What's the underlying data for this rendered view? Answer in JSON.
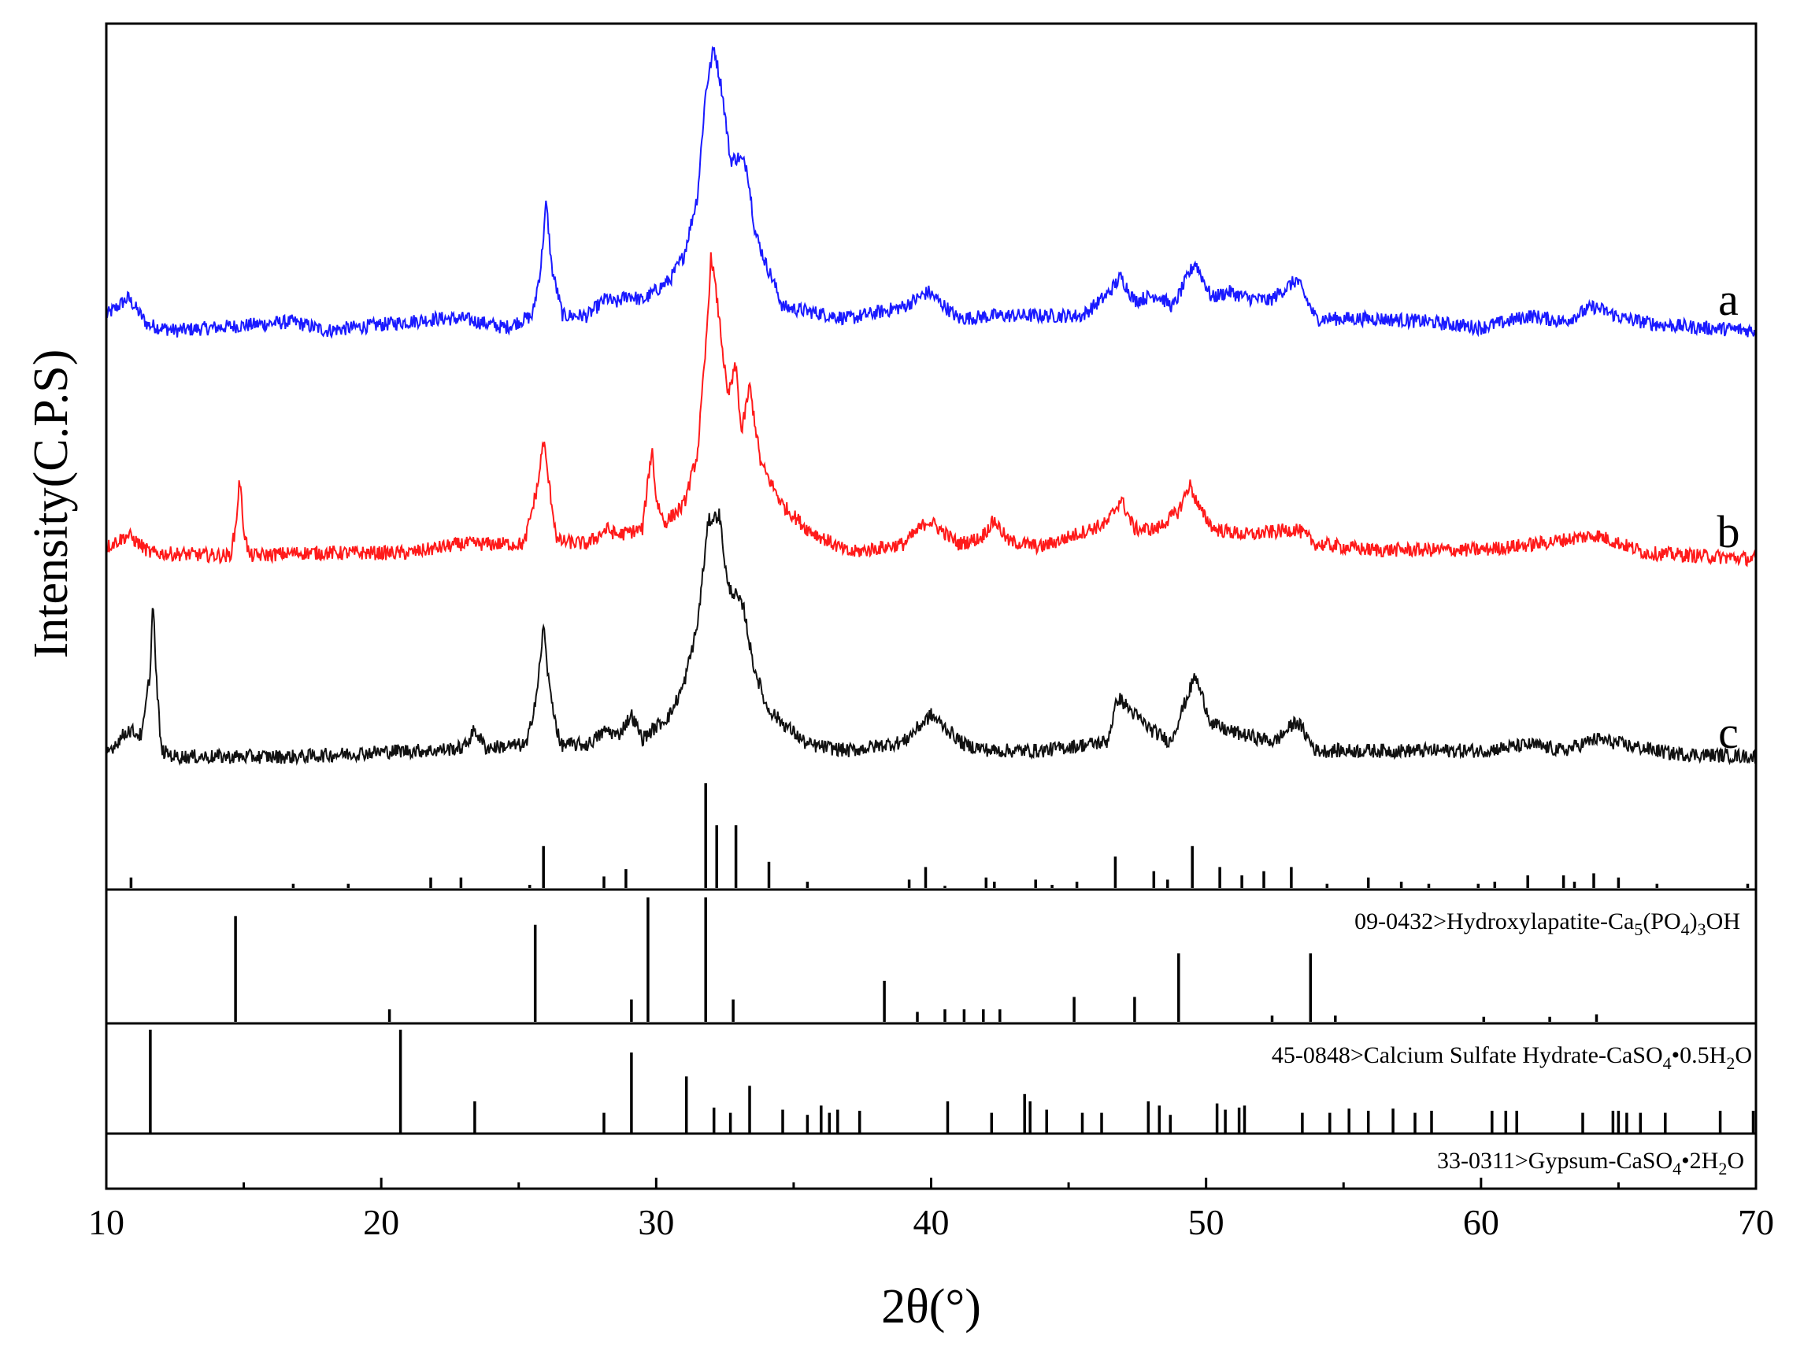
{
  "colors": {
    "a": "#1a1aff",
    "b": "#ff1a1a",
    "c": "#111111",
    "frame": "#000000",
    "sticks": "#000000"
  },
  "chart_data": {
    "type": "line",
    "xlabel": "2θ(°)",
    "ylabel": "Intensity(C.P.S)",
    "xlim": [
      10,
      70
    ],
    "x_ticks": [
      10,
      20,
      30,
      40,
      50,
      60,
      70
    ],
    "x_tick_labels": [
      "10",
      "20",
      "30",
      "40",
      "50",
      "60",
      "70"
    ],
    "series": [
      {
        "name": "a",
        "baseline_cps": 0.45,
        "noise": 0.03,
        "x": [
          10,
          10.8,
          11.5,
          12.5,
          16.8,
          18,
          22,
          23,
          24.5,
          25.5,
          25.8,
          26,
          26.2,
          26.6,
          27.5,
          28.2,
          28.5,
          29,
          29.5,
          30.5,
          31,
          31.5,
          31.8,
          32.1,
          32.4,
          32.7,
          33,
          33.3,
          33.6,
          34,
          34.2,
          34.6,
          35.2,
          37,
          39,
          39.9,
          41,
          42.4,
          44,
          45.5,
          46.4,
          46.9,
          47.4,
          48.2,
          48.8,
          49.6,
          50.2,
          50.8,
          51.5,
          52.3,
          53.3,
          54,
          56.2,
          58,
          60,
          61.8,
          63,
          64.1,
          65.2,
          66.5,
          68,
          70
        ],
        "y": [
          0.5,
          0.56,
          0.47,
          0.45,
          0.48,
          0.45,
          0.49,
          0.49,
          0.46,
          0.5,
          0.66,
          0.88,
          0.66,
          0.5,
          0.5,
          0.56,
          0.54,
          0.57,
          0.55,
          0.62,
          0.7,
          0.9,
          1.25,
          1.4,
          1.25,
          1.02,
          1.03,
          1.0,
          0.78,
          0.67,
          0.63,
          0.53,
          0.52,
          0.49,
          0.53,
          0.58,
          0.49,
          0.5,
          0.5,
          0.5,
          0.57,
          0.63,
          0.55,
          0.57,
          0.53,
          0.68,
          0.56,
          0.58,
          0.56,
          0.55,
          0.62,
          0.49,
          0.49,
          0.48,
          0.46,
          0.5,
          0.48,
          0.53,
          0.49,
          0.47,
          0.46,
          0.45
        ]
      },
      {
        "name": "b",
        "baseline_cps": 0.2,
        "noise": 0.03,
        "x": [
          10,
          10.8,
          11.6,
          14.5,
          14.7,
          14.85,
          15.0,
          15.2,
          17,
          21,
          22.9,
          25.2,
          25.7,
          25.9,
          26.1,
          26.4,
          27.5,
          28.2,
          28.6,
          29.5,
          29.75,
          29.85,
          30.0,
          30.3,
          31,
          31.5,
          31.8,
          32.0,
          32.3,
          32.6,
          32.9,
          33.1,
          33.4,
          33.8,
          34.2,
          34.6,
          35.5,
          37,
          39,
          39.9,
          41,
          41.8,
          42.3,
          42.8,
          44,
          46.4,
          46.9,
          47.4,
          48.2,
          49.0,
          49.4,
          49.8,
          50.3,
          51.5,
          53.3,
          54,
          56,
          60,
          62,
          64.2,
          66,
          70
        ],
        "y": [
          0.24,
          0.28,
          0.22,
          0.21,
          0.3,
          0.47,
          0.3,
          0.21,
          0.22,
          0.22,
          0.25,
          0.25,
          0.45,
          0.6,
          0.45,
          0.26,
          0.25,
          0.3,
          0.28,
          0.3,
          0.5,
          0.57,
          0.4,
          0.32,
          0.38,
          0.55,
          0.9,
          1.22,
          1.0,
          0.74,
          0.85,
          0.62,
          0.78,
          0.52,
          0.45,
          0.38,
          0.3,
          0.22,
          0.25,
          0.33,
          0.25,
          0.27,
          0.33,
          0.26,
          0.24,
          0.32,
          0.4,
          0.3,
          0.3,
          0.36,
          0.45,
          0.36,
          0.3,
          0.28,
          0.3,
          0.25,
          0.23,
          0.23,
          0.25,
          0.28,
          0.22,
          0.2
        ]
      },
      {
        "name": "c",
        "baseline_cps": 0.0,
        "noise": 0.03,
        "x": [
          10,
          10.8,
          11.3,
          11.6,
          11.7,
          11.8,
          12.0,
          12.5,
          17,
          20.8,
          21.8,
          23.0,
          23.4,
          23.8,
          25.3,
          25.7,
          25.9,
          26.1,
          26.5,
          27.5,
          28.2,
          28.6,
          29.1,
          29.5,
          30.5,
          31,
          31.5,
          31.9,
          32.3,
          32.6,
          32.9,
          33.2,
          33.5,
          34.0,
          34.4,
          35.5,
          37,
          39,
          40.0,
          41.2,
          42.2,
          44,
          46.4,
          46.8,
          47.3,
          48.0,
          48.7,
          49.6,
          50.2,
          50.7,
          51.5,
          52.5,
          53.3,
          54,
          56,
          60,
          61.8,
          63,
          64.2,
          65.2,
          67,
          70
        ],
        "y": [
          0.02,
          0.1,
          0.08,
          0.3,
          0.55,
          0.3,
          0.03,
          0.01,
          0.01,
          0.03,
          0.03,
          0.04,
          0.1,
          0.04,
          0.05,
          0.25,
          0.45,
          0.25,
          0.05,
          0.05,
          0.1,
          0.08,
          0.15,
          0.07,
          0.15,
          0.25,
          0.45,
          0.8,
          0.82,
          0.58,
          0.55,
          0.5,
          0.33,
          0.18,
          0.14,
          0.05,
          0.03,
          0.06,
          0.15,
          0.05,
          0.03,
          0.03,
          0.06,
          0.21,
          0.16,
          0.1,
          0.06,
          0.28,
          0.12,
          0.1,
          0.08,
          0.06,
          0.13,
          0.03,
          0.03,
          0.03,
          0.05,
          0.03,
          0.07,
          0.05,
          0.02,
          0.01
        ]
      }
    ],
    "trace_labels": [
      "a",
      "b",
      "c"
    ],
    "reference_patterns": [
      {
        "label": "09-0432>Hydroxylapatite-Ca5(PO4)3OH",
        "label_parts": [
          "09-0432>Hydroxylapatite-Ca",
          "5",
          "(PO",
          "4",
          ")",
          "3",
          "OH"
        ],
        "lines": [
          [
            10.9,
            10
          ],
          [
            16.8,
            4
          ],
          [
            18.8,
            4
          ],
          [
            21.8,
            10
          ],
          [
            22.9,
            10
          ],
          [
            25.4,
            3
          ],
          [
            25.9,
            40
          ],
          [
            28.1,
            11
          ],
          [
            28.9,
            18
          ],
          [
            31.8,
            100
          ],
          [
            32.2,
            60
          ],
          [
            32.9,
            60
          ],
          [
            34.1,
            25
          ],
          [
            35.5,
            6
          ],
          [
            39.2,
            8
          ],
          [
            39.8,
            20
          ],
          [
            40.5,
            2
          ],
          [
            42.0,
            10
          ],
          [
            42.3,
            6
          ],
          [
            43.8,
            8
          ],
          [
            44.4,
            3
          ],
          [
            45.3,
            6
          ],
          [
            46.7,
            30
          ],
          [
            48.1,
            16
          ],
          [
            48.6,
            8
          ],
          [
            49.5,
            40
          ],
          [
            50.5,
            20
          ],
          [
            51.3,
            12
          ],
          [
            52.1,
            16
          ],
          [
            53.1,
            20
          ],
          [
            54.4,
            4
          ],
          [
            55.9,
            10
          ],
          [
            57.1,
            6
          ],
          [
            58.1,
            4
          ],
          [
            59.9,
            4
          ],
          [
            60.5,
            6
          ],
          [
            61.7,
            12
          ],
          [
            63.0,
            12
          ],
          [
            63.4,
            6
          ],
          [
            64.1,
            14
          ],
          [
            65.0,
            10
          ],
          [
            66.4,
            4
          ],
          [
            69.7,
            4
          ]
        ]
      },
      {
        "label": "45-0848>Calcium Sulfate Hydrate-CaSO4•0.5H2O",
        "label_parts": [
          "45-0848>Calcium Sulfate Hydrate-CaSO",
          "4",
          "•0.5H",
          "2",
          "O"
        ],
        "lines": [
          [
            14.7,
            85
          ],
          [
            20.3,
            10
          ],
          [
            25.6,
            78
          ],
          [
            29.1,
            18
          ],
          [
            29.7,
            100
          ],
          [
            31.8,
            100
          ],
          [
            32.8,
            18
          ],
          [
            38.3,
            33
          ],
          [
            39.5,
            8
          ],
          [
            40.5,
            10
          ],
          [
            41.2,
            10
          ],
          [
            41.9,
            10
          ],
          [
            42.5,
            10
          ],
          [
            45.2,
            20
          ],
          [
            47.4,
            20
          ],
          [
            49.0,
            55
          ],
          [
            52.4,
            5
          ],
          [
            53.8,
            55
          ],
          [
            54.7,
            5
          ],
          [
            60.1,
            4
          ],
          [
            62.5,
            4
          ],
          [
            64.2,
            6
          ]
        ]
      },
      {
        "label": "33-0311>Gypsum-CaSO4•2H2O",
        "label_parts": [
          "33-0311>Gypsum-CaSO",
          "4",
          "•2H",
          "2",
          "O"
        ],
        "lines": [
          [
            11.6,
            100
          ],
          [
            20.7,
            100
          ],
          [
            23.4,
            31
          ],
          [
            28.1,
            20
          ],
          [
            29.1,
            78
          ],
          [
            31.1,
            55
          ],
          [
            32.1,
            25
          ],
          [
            32.7,
            20
          ],
          [
            33.4,
            46
          ],
          [
            34.6,
            23
          ],
          [
            35.5,
            18
          ],
          [
            36.0,
            27
          ],
          [
            36.3,
            20
          ],
          [
            36.6,
            23
          ],
          [
            37.4,
            22
          ],
          [
            40.6,
            31
          ],
          [
            42.2,
            20
          ],
          [
            43.4,
            38
          ],
          [
            43.6,
            31
          ],
          [
            44.2,
            23
          ],
          [
            45.5,
            20
          ],
          [
            46.2,
            20
          ],
          [
            47.9,
            31
          ],
          [
            48.3,
            27
          ],
          [
            48.7,
            18
          ],
          [
            50.4,
            29
          ],
          [
            50.7,
            23
          ],
          [
            51.2,
            25
          ],
          [
            51.4,
            27
          ],
          [
            53.5,
            20
          ],
          [
            54.5,
            20
          ],
          [
            55.2,
            24
          ],
          [
            55.9,
            22
          ],
          [
            56.8,
            24
          ],
          [
            57.6,
            20
          ],
          [
            58.2,
            22
          ],
          [
            60.4,
            22
          ],
          [
            60.9,
            22
          ],
          [
            61.3,
            22
          ],
          [
            63.7,
            20
          ],
          [
            64.8,
            22
          ],
          [
            65.0,
            22
          ],
          [
            65.3,
            20
          ],
          [
            65.8,
            20
          ],
          [
            66.7,
            20
          ],
          [
            68.7,
            22
          ],
          [
            69.9,
            22
          ]
        ]
      }
    ],
    "grid": false,
    "legend": "none"
  }
}
